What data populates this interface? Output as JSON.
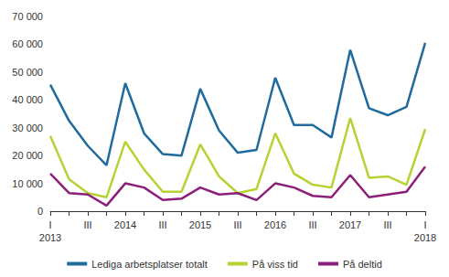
{
  "chart_data": {
    "type": "line",
    "categories": [
      "I\n2013",
      null,
      "III",
      null,
      "2014",
      null,
      "III",
      null,
      "2015",
      null,
      "III",
      null,
      "2016",
      null,
      "III",
      null,
      "2017",
      null,
      "III",
      null,
      "I\n2018"
    ],
    "series": [
      {
        "name": "Lediga arbetsplatser totalt",
        "color": "#1f6b9e",
        "values": [
          45500,
          32500,
          23500,
          16500,
          46000,
          28000,
          20500,
          20000,
          44000,
          29000,
          21000,
          22000,
          48000,
          31000,
          31000,
          26500,
          58000,
          37000,
          34500,
          37500,
          60500
        ]
      },
      {
        "name": "På viss tid",
        "color": "#b5d334",
        "values": [
          27000,
          11500,
          6500,
          5000,
          25000,
          15000,
          7000,
          7000,
          24000,
          12500,
          6500,
          8000,
          28000,
          13500,
          9500,
          8500,
          33500,
          12000,
          12500,
          9500,
          29500
        ]
      },
      {
        "name": "På deltid",
        "color": "#8c1f79",
        "values": [
          13500,
          6500,
          6000,
          2000,
          10000,
          8500,
          4000,
          4500,
          8500,
          6000,
          6500,
          4000,
          10000,
          8500,
          5500,
          5000,
          13000,
          5000,
          6000,
          7000,
          16000
        ]
      }
    ],
    "ylim": [
      0,
      70000
    ],
    "yticks": [
      0,
      {
        "value": 10000,
        "label": "10 000"
      },
      {
        "value": 20000,
        "label": "20 000"
      },
      {
        "value": 30000,
        "label": "30 000"
      },
      {
        "value": 40000,
        "label": "40 000"
      },
      {
        "value": 50000,
        "label": "50 000"
      },
      {
        "value": 60000,
        "label": "60 000"
      },
      {
        "value": 70000,
        "label": "70 000"
      }
    ],
    "grid": false,
    "legend": "bottom"
  }
}
